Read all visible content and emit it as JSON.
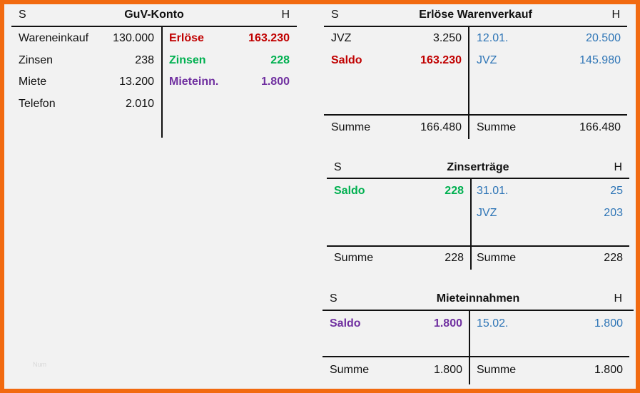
{
  "guv": {
    "s": "S",
    "title": "GuV-Konto",
    "h": "H",
    "left": [
      {
        "label": "Wareneinkauf",
        "value": "130.000"
      },
      {
        "label": "Zinsen",
        "value": "238"
      },
      {
        "label": "Miete",
        "value": "13.200"
      },
      {
        "label": "Telefon",
        "value": "2.010"
      }
    ],
    "right": [
      {
        "label": "Erlöse",
        "value": "163.230"
      },
      {
        "label": "Zinsen",
        "value": "228"
      },
      {
        "label": "Mieteinn.",
        "value": "1.800"
      }
    ]
  },
  "erloese": {
    "s": "S",
    "title": "Erlöse Warenverkauf",
    "h": "H",
    "left": [
      {
        "label": "JVZ",
        "value": "3.250"
      },
      {
        "label": "Saldo",
        "value": "163.230"
      }
    ],
    "right": [
      {
        "label": "12.01.",
        "value": "20.500"
      },
      {
        "label": "JVZ",
        "value": "145.980"
      }
    ],
    "sum_left": {
      "label": "Summe",
      "value": "166.480"
    },
    "sum_right": {
      "label": "Summe",
      "value": "166.480"
    }
  },
  "zins": {
    "s": "S",
    "title": "Zinserträge",
    "h": "H",
    "left": [
      {
        "label": "Saldo",
        "value": "228"
      }
    ],
    "right": [
      {
        "label": "31.01.",
        "value": "25"
      },
      {
        "label": "JVZ",
        "value": "203"
      }
    ],
    "sum_left": {
      "label": "Summe",
      "value": "228"
    },
    "sum_right": {
      "label": "Summe",
      "value": "228"
    }
  },
  "miete": {
    "s": "S",
    "title": "Mieteinnahmen",
    "h": "H",
    "left": [
      {
        "label": "Saldo",
        "value": "1.800"
      }
    ],
    "right": [
      {
        "label": "15.02.",
        "value": "1.800"
      }
    ],
    "sum_left": {
      "label": "Summe",
      "value": "1.800"
    },
    "sum_right": {
      "label": "Summe",
      "value": "1.800"
    }
  },
  "watermark": "Num",
  "colors": {
    "frame": "#f26a10",
    "red": "#c00000",
    "green": "#00b050",
    "purple": "#7030a0",
    "blue": "#2e75b6"
  }
}
